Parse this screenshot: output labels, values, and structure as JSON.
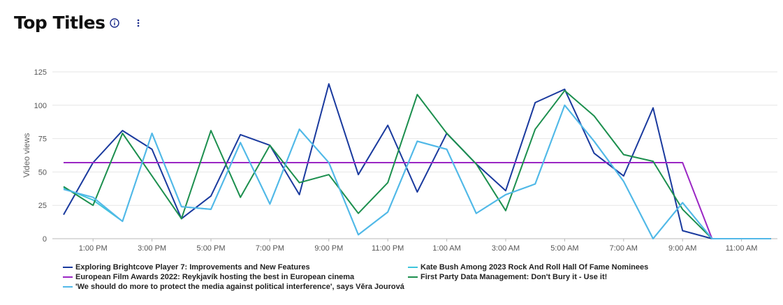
{
  "header": {
    "title": "Top Titles",
    "info_icon": "info-circle-icon",
    "menu_icon": "kebab-menu-icon"
  },
  "chart_data": {
    "type": "line",
    "ylabel": "Video views",
    "ylim": [
      0,
      125
    ],
    "yticks": [
      0,
      25,
      50,
      75,
      100,
      125
    ],
    "grid": true,
    "legend_position": "bottom",
    "x": [
      "12:00 PM",
      "1:00 PM",
      "2:00 PM",
      "3:00 PM",
      "4:00 PM",
      "5:00 PM",
      "6:00 PM",
      "7:00 PM",
      "8:00 PM",
      "9:00 PM",
      "10:00 PM",
      "11:00 PM",
      "12:00 AM",
      "1:00 AM",
      "2:00 AM",
      "3:00 AM",
      "4:00 AM",
      "5:00 AM",
      "6:00 AM",
      "7:00 AM",
      "8:00 AM",
      "9:00 AM",
      "10:00 AM",
      "11:00 AM",
      "12:00 PM"
    ],
    "xtick_labels": [
      "1:00 PM",
      "3:00 PM",
      "5:00 PM",
      "7:00 PM",
      "9:00 PM",
      "11:00 PM",
      "1:00 AM",
      "3:00 AM",
      "5:00 AM",
      "7:00 AM",
      "9:00 AM",
      "11:00 AM"
    ],
    "series": [
      {
        "name": "Exploring Brightcove Player 7: Improvements and New Features",
        "color": "#1a3a9e",
        "values": [
          18,
          57,
          81,
          67,
          15,
          32,
          78,
          70,
          33,
          116,
          48,
          85,
          35,
          79,
          56,
          36,
          102,
          112,
          64,
          47,
          98,
          6,
          0,
          0,
          0
        ]
      },
      {
        "name": "Kate Bush Among 2023 Rock And Roll Hall Of Fame Nominees",
        "color": "#3ec5dc",
        "values": [
          38,
          29,
          13,
          79,
          24,
          22,
          72,
          26,
          82,
          57,
          3,
          20,
          73,
          67,
          19,
          33,
          41,
          100,
          73,
          43,
          0,
          27,
          0,
          0,
          0
        ]
      },
      {
        "name": "European Film Awards 2022: Reykjavík hosting the best in European cinema",
        "color": "#9b27c4",
        "values": [
          57,
          57,
          57,
          57,
          57,
          57,
          57,
          57,
          57,
          57,
          57,
          57,
          57,
          57,
          57,
          57,
          57,
          57,
          57,
          57,
          57,
          57,
          0,
          0,
          0
        ]
      },
      {
        "name": "First Party Data Management: Don't Bury it - Use it!",
        "color": "#1c8f4e",
        "values": [
          39,
          25,
          79,
          47,
          15,
          81,
          31,
          70,
          42,
          48,
          19,
          42,
          108,
          79,
          56,
          21,
          82,
          111,
          92,
          63,
          58,
          22,
          0,
          0,
          0
        ]
      },
      {
        "name": "'We should do more to protect the media against political interference', says Věra Jourová",
        "color": "#52b8e8",
        "values": [
          37,
          31,
          13,
          79,
          24,
          22,
          72,
          26,
          82,
          57,
          3,
          20,
          73,
          67,
          19,
          33,
          41,
          100,
          73,
          43,
          0,
          27,
          0,
          0,
          0
        ]
      }
    ]
  }
}
